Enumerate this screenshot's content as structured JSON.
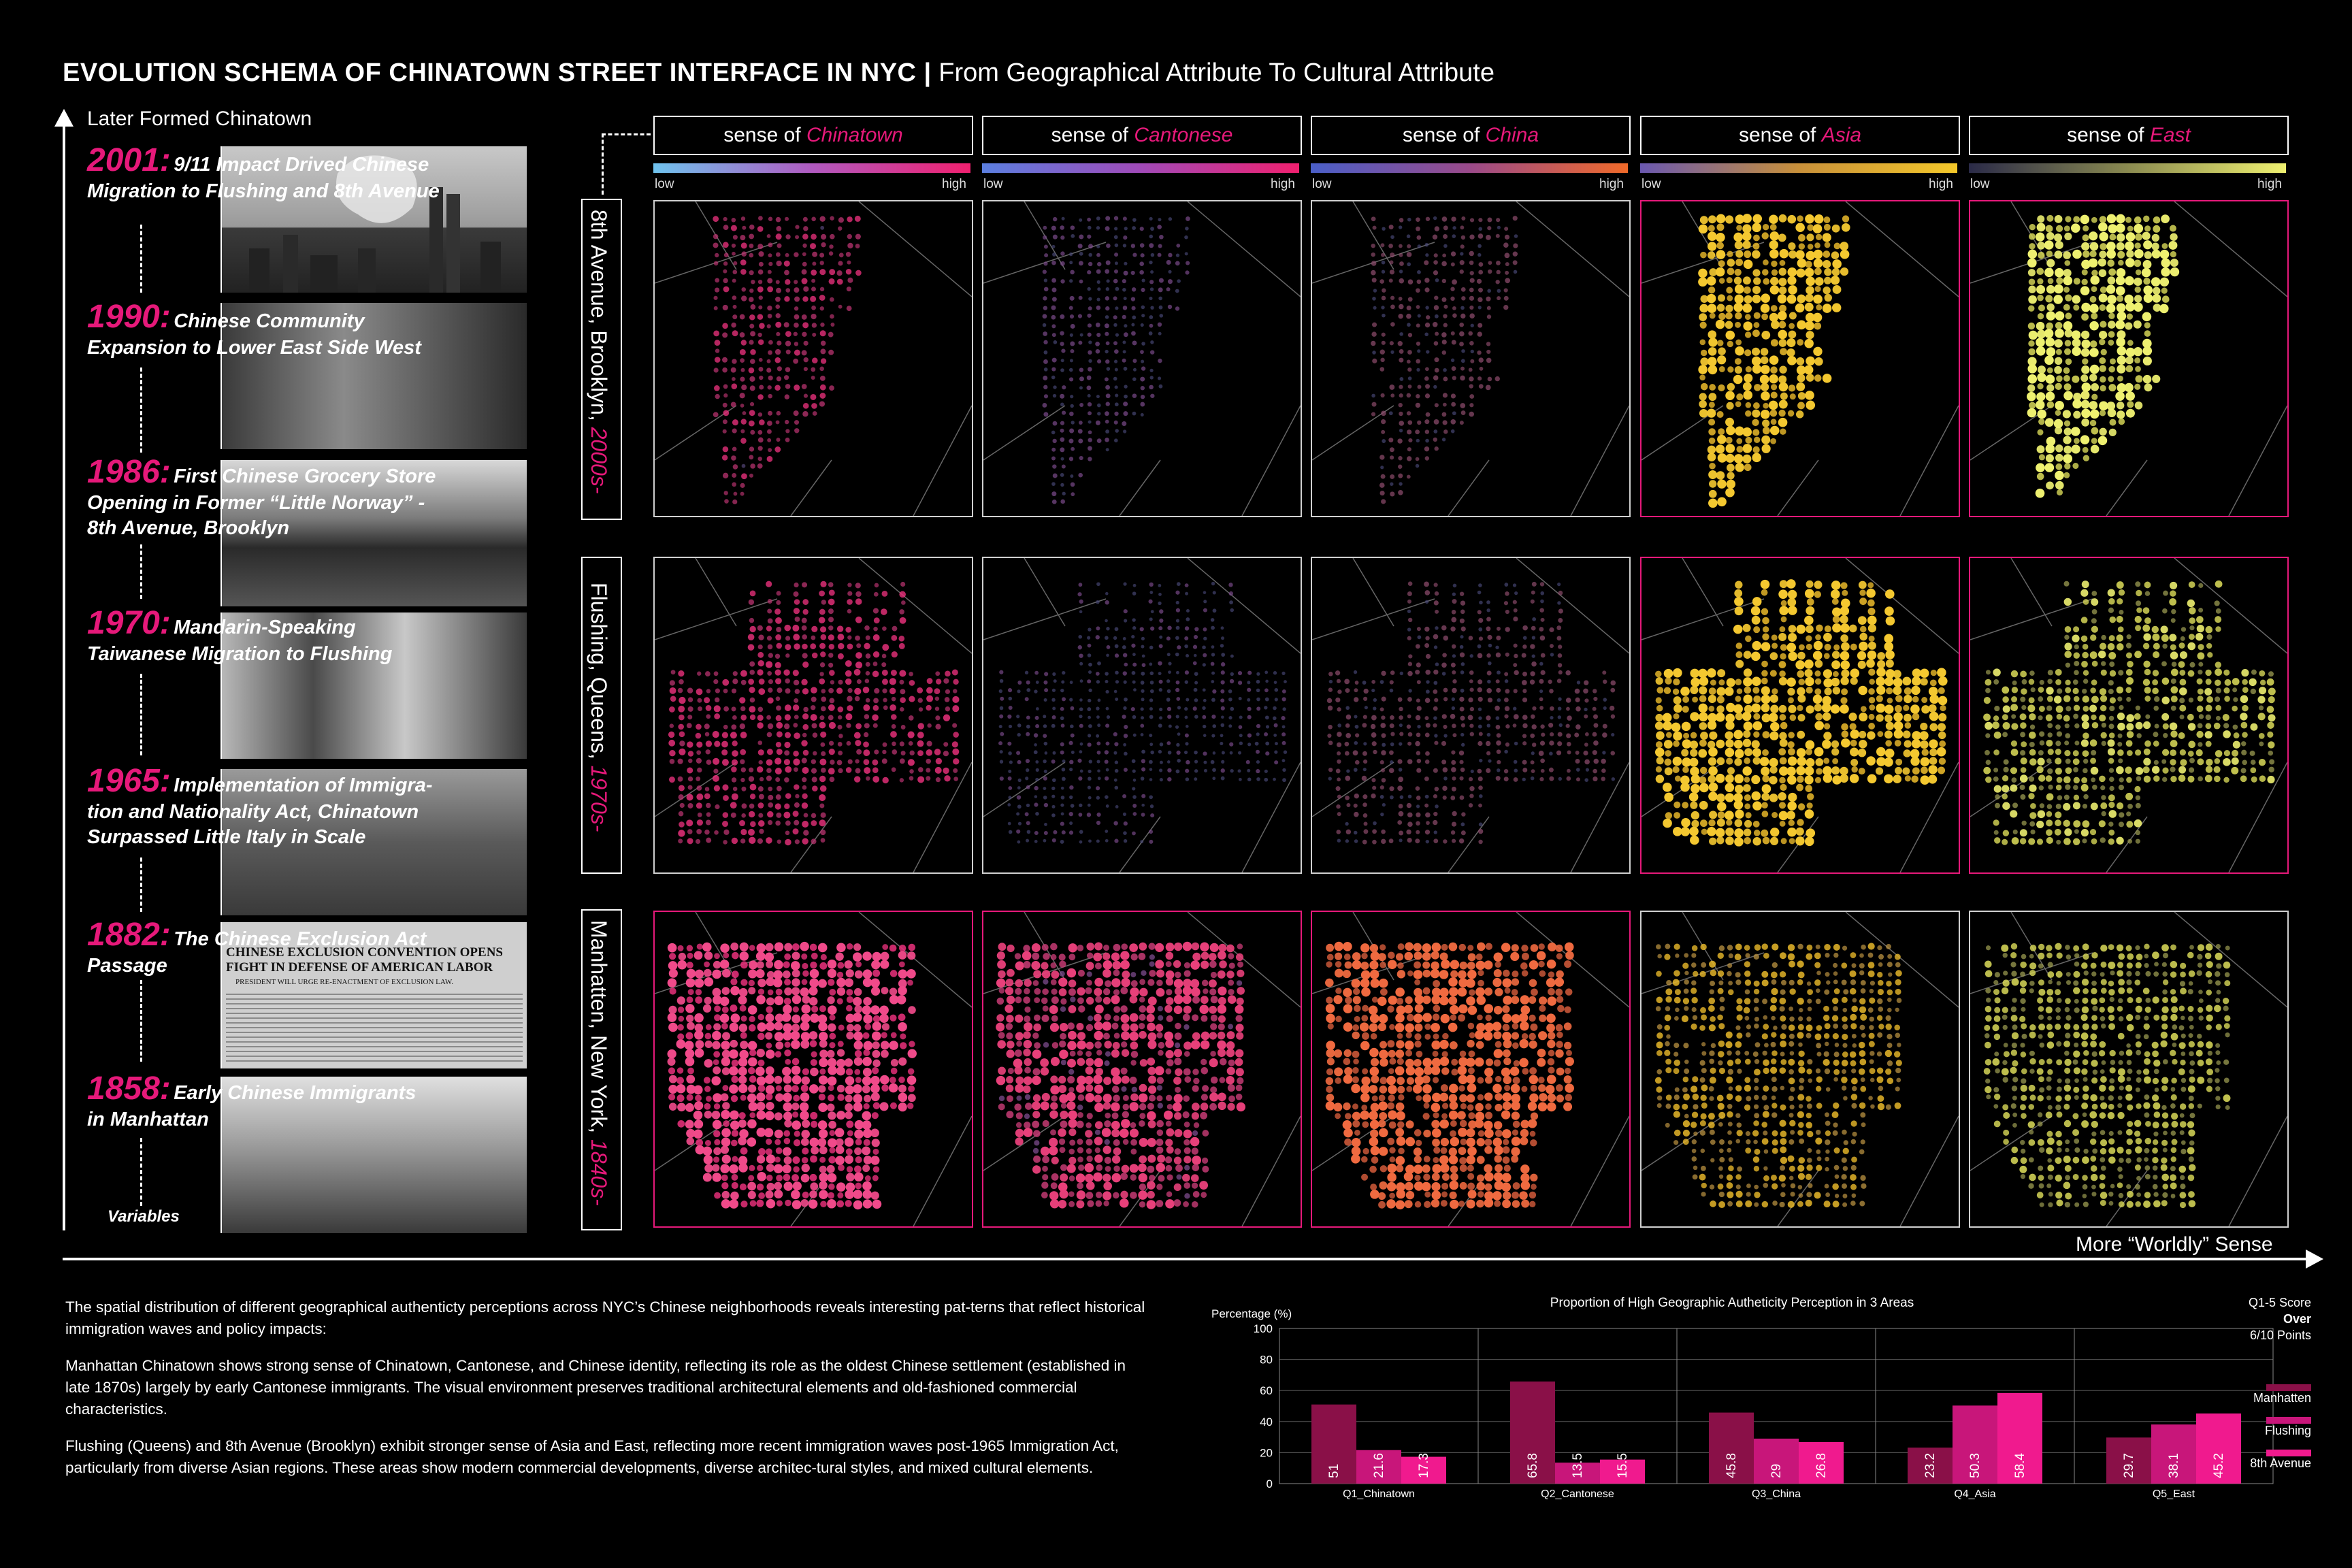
{
  "title": {
    "bold": "EVOLUTION SCHEMA OF CHINATOWN STREET INTERFACE IN NYC |",
    "regular": "From Geographical Attribute To Cultural Attribute"
  },
  "y_axis_label": "Later Formed Chinatown",
  "x_axis_label": "More “Worldly” Sense",
  "timeline": [
    {
      "year": "2001:",
      "line1": "9/11 Impact Drived Chinese",
      "line2": "Migration to Flushing and 8th Avenue",
      "line3": ""
    },
    {
      "year": "1990:",
      "line1": "Chinese Community",
      "line2": "Expansion to Lower East Side West",
      "line3": ""
    },
    {
      "year": "1986:",
      "line1": "First Chinese Grocery Store",
      "line2": "Opening in Former “Little Norway” -",
      "line3": "8th Avenue, Brooklyn"
    },
    {
      "year": "1970:",
      "line1": "Mandarin-Speaking",
      "line2": "Taiwanese Migration to Flushing",
      "line3": ""
    },
    {
      "year": "1965:",
      "line1": "Implementation of Immigra-",
      "line2": "tion and Nationality Act, Chinatown",
      "line3": "Surpassed Little Italy in Scale"
    },
    {
      "year": "1882:",
      "line1": "The Chinese Exclusion Act",
      "line2": "Passage",
      "line3": ""
    },
    {
      "year": "1858:",
      "line1": "Early Chinese Immigrants",
      "line2": "in Manhattan",
      "line3": ""
    }
  ],
  "newspaper": {
    "headline1": "CHINESE EXCLUSION CONVENTION OPENS",
    "headline2": "FIGHT IN DEFENSE OF AMERICAN LABOR",
    "subhead": "PRESIDENT WILL URGE RE-ENACTMENT OF EXCLUSION LAW."
  },
  "variables_label": "Variables",
  "columns": [
    {
      "prefix": "sense of ",
      "highlight": "Chinatown",
      "low": "low",
      "high": "high",
      "grad_from": "#6fc3ee",
      "grad_to": "#f0206f"
    },
    {
      "prefix": "sense of ",
      "highlight": "Cantonese",
      "low": "low",
      "high": "high",
      "grad_from": "#5b7fe0",
      "grad_to": "#f0206f"
    },
    {
      "prefix": "sense of ",
      "highlight": "China",
      "low": "low",
      "high": "high",
      "grad_from": "#4a5fc8",
      "grad_to": "#f06a2a"
    },
    {
      "prefix": "sense of ",
      "highlight": "Asia",
      "low": "low",
      "high": "high",
      "grad_from": "#6a58b0",
      "grad_to": "#f4c82a"
    },
    {
      "prefix": "sense of ",
      "highlight": "East",
      "low": "low",
      "high": "high",
      "grad_from": "#2a2a48",
      "grad_to": "#eef070"
    }
  ],
  "rows": [
    {
      "place": "8th Avenue, Brooklyn,",
      "era": "2000s-"
    },
    {
      "place": "Flushing, Queens,",
      "era": "1970s-"
    },
    {
      "place": "Manhatten, New York,",
      "era": "1840s-"
    }
  ],
  "description": {
    "p1": "The spatial distribution of different geographical authenticty perceptions across NYC’s Chinese neighborhoods reveals interesting pat-terns that reflect historical immigration waves and policy impacts:",
    "p2": "Manhattan Chinatown shows strong sense of Chinatown, Cantonese, and Chinese identity, reflecting its role as the oldest Chinese settlement (established in late 1870s) largely by early Cantonese immigrants. The visual environment preserves traditional architectural elements and old-fashioned commercial characteristics.",
    "p3": "Flushing (Queens) and 8th Avenue (Brooklyn) exhibit stronger sense of Asia and East, reflecting more recent immigration waves post-1965 Immigration Act, particularly from diverse Asian regions. These areas show modern commercial developments, diverse architec-tural styles, and mixed cultural elements."
  },
  "chart_data": {
    "type": "bar",
    "title": "Proportion of High Geographic Autheticity Perception in 3 Areas",
    "ylabel": "Percentage (%)",
    "ylim": [
      0,
      100
    ],
    "yticks": [
      "0",
      "20",
      "40",
      "60",
      "80",
      "100"
    ],
    "categories": [
      "Q1_Chinatown",
      "Q2_Cantonese",
      "Q3_China",
      "Q4_Asia",
      "Q5_East"
    ],
    "series": [
      {
        "name": "Manhatten",
        "color": "#8a1048",
        "values": [
          51,
          65.8,
          45.8,
          23.2,
          29.7
        ],
        "labels": [
          "51",
          "65.8",
          "45.8",
          "23.2",
          "29.7"
        ]
      },
      {
        "name": "Flushing",
        "color": "#c8167a",
        "values": [
          21.6,
          13.5,
          29,
          50.3,
          38.1
        ],
        "labels": [
          "21.6",
          "13.5",
          "29",
          "50.3",
          "38.1"
        ]
      },
      {
        "name": "8th Avenue",
        "color": "#f01a8e",
        "values": [
          17.3,
          15.5,
          26.8,
          58.4,
          45.2
        ],
        "labels": [
          "17.3",
          "15.5",
          "26.8",
          "58.4",
          "45.2"
        ]
      }
    ],
    "legend_title_1": "Q1-5 Score",
    "legend_title_2": "Over",
    "legend_title_3": "6/10 Points",
    "legend_position": "right"
  },
  "map_palettes": {
    "col0": [
      "#5a4a80",
      "#b8336f",
      "#e6307a",
      "#f04a8a"
    ],
    "col1": [
      "#4a4a7a",
      "#7a4a8a",
      "#c23a72",
      "#e8407a"
    ],
    "col2": [
      "#4a4a7a",
      "#8a4a6a",
      "#d05a3a",
      "#f06a40"
    ],
    "col3": [
      "#5a5088",
      "#b89040",
      "#e8b82a",
      "#f4c830"
    ],
    "col4": [
      "#4a4a58",
      "#9a9a50",
      "#d8d858",
      "#eef070"
    ]
  },
  "map_intensity": [
    [
      0.45,
      0.3,
      0.35,
      0.95,
      0.95
    ],
    [
      0.55,
      0.25,
      0.35,
      0.95,
      0.65
    ],
    [
      0.95,
      0.85,
      0.95,
      0.55,
      0.6
    ]
  ]
}
